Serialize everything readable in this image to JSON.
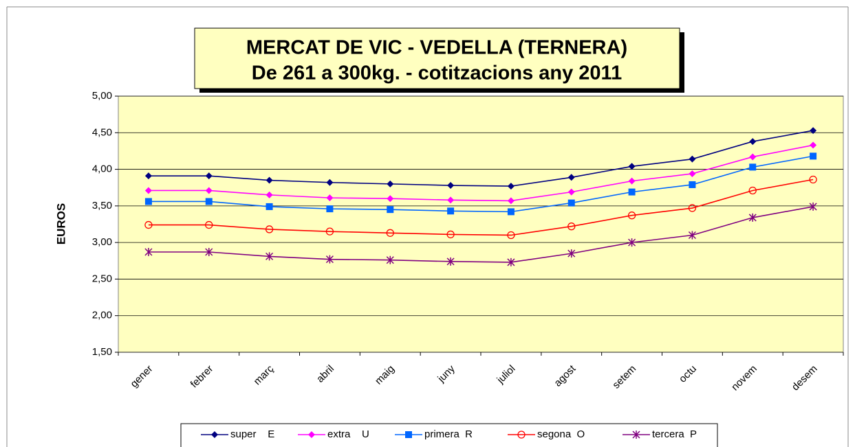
{
  "chart_data": {
    "type": "line",
    "title": [
      "MERCAT DE VIC - VEDELLA (TERNERA)",
      "De 261 a 300kg. - cotitzacions any 2011"
    ],
    "y_label": "EUROS",
    "categories": [
      "gener",
      "febrer",
      "març",
      "abril",
      "maig",
      "juny",
      "juliol",
      "agost",
      "setem",
      "octu",
      "novem",
      "desem"
    ],
    "series": [
      {
        "name": "super    E",
        "color": "#000080",
        "marker": "diamond",
        "values": [
          3.91,
          3.91,
          3.85,
          3.82,
          3.8,
          3.78,
          3.77,
          3.89,
          4.04,
          4.14,
          4.38,
          4.53
        ]
      },
      {
        "name": "extra    U",
        "color": "#ff00ff",
        "marker": "diamond",
        "values": [
          3.71,
          3.71,
          3.65,
          3.61,
          3.6,
          3.58,
          3.57,
          3.69,
          3.84,
          3.94,
          4.17,
          4.33
        ]
      },
      {
        "name": "primera  R",
        "color": "#0066ff",
        "marker": "square",
        "values": [
          3.56,
          3.56,
          3.49,
          3.46,
          3.45,
          3.43,
          3.42,
          3.54,
          3.69,
          3.79,
          4.03,
          4.18
        ]
      },
      {
        "name": "segona  O",
        "color": "#ff0000",
        "marker": "circle",
        "values": [
          3.24,
          3.24,
          3.18,
          3.15,
          3.13,
          3.11,
          3.1,
          3.22,
          3.37,
          3.47,
          3.71,
          3.86
        ]
      },
      {
        "name": "tercera  P",
        "color": "#800080",
        "marker": "star",
        "values": [
          2.87,
          2.87,
          2.81,
          2.77,
          2.76,
          2.74,
          2.73,
          2.85,
          3.0,
          3.1,
          3.34,
          3.49
        ]
      }
    ],
    "ylim": [
      1.5,
      5.0
    ],
    "yticks": [
      {
        "value": 1.5,
        "label": "1,50"
      },
      {
        "value": 2.0,
        "label": "2,00"
      },
      {
        "value": 2.5,
        "label": "2,50"
      },
      {
        "value": 3.0,
        "label": "3,00"
      },
      {
        "value": 3.5,
        "label": "3,50"
      },
      {
        "value": 4.0,
        "label": "4,00"
      },
      {
        "value": 4.5,
        "label": "4,50"
      },
      {
        "value": 5.0,
        "label": "5,00"
      }
    ],
    "grid": true,
    "plot_background": "#ffffc0",
    "legend": "bottom"
  }
}
